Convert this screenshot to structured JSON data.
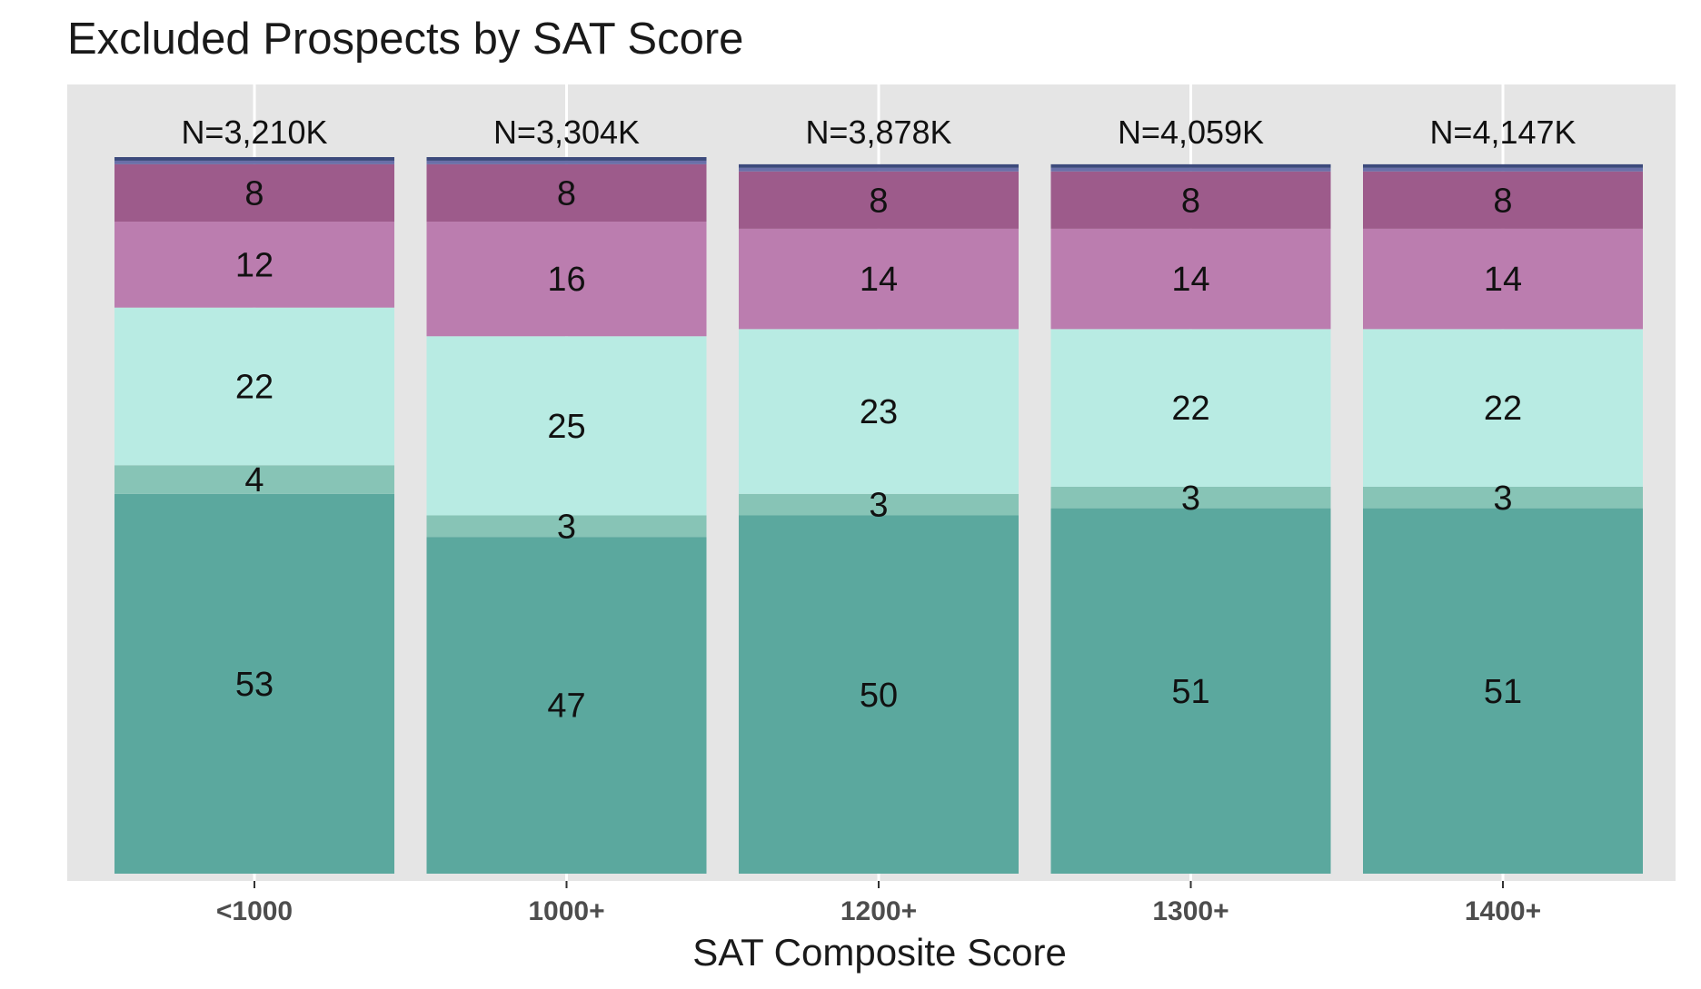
{
  "chart_data": {
    "type": "bar",
    "stacked": true,
    "title": "Excluded Prospects by SAT Score",
    "xlabel": "SAT Composite Score",
    "ylabel": "",
    "ylim": [
      0,
      100
    ],
    "grid": true,
    "legend": "none",
    "categories": [
      "<1000",
      "1000+",
      "1200+",
      "1300+",
      "1400+"
    ],
    "totals": [
      "N=3,210K",
      "N=3,304K",
      "N=3,878K",
      "N=4,059K",
      "N=4,147K"
    ],
    "series": [
      {
        "color": "#5ba89e",
        "values": [
          53,
          47,
          50,
          51,
          51
        ],
        "labels": [
          "53",
          "47",
          "50",
          "51",
          "51"
        ]
      },
      {
        "color": "#87c4b6",
        "values": [
          4,
          3,
          3,
          3,
          3
        ],
        "labels": [
          "4",
          "3",
          "3",
          "3",
          "3"
        ]
      },
      {
        "color": "#b8ebe3",
        "values": [
          22,
          25,
          23,
          22,
          22
        ],
        "labels": [
          "22",
          "25",
          "23",
          "22",
          "22"
        ]
      },
      {
        "color": "#bb7daf",
        "values": [
          12,
          16,
          14,
          14,
          14
        ],
        "labels": [
          "12",
          "16",
          "14",
          "14",
          "14"
        ]
      },
      {
        "color": "#9d5b8b",
        "values": [
          8,
          8,
          8,
          8,
          8
        ],
        "labels": [
          "8",
          "8",
          "8",
          "8",
          "8"
        ]
      },
      {
        "color": "#6a6fa8",
        "values": [
          0.5,
          0.5,
          0.5,
          0.5,
          0.5
        ],
        "labels": [
          "",
          "",
          "",
          "",
          ""
        ]
      },
      {
        "color": "#3c4a7c",
        "values": [
          0.5,
          0.5,
          0.5,
          0.5,
          0.5
        ],
        "labels": [
          "",
          "",
          "",
          "",
          ""
        ]
      }
    ]
  }
}
